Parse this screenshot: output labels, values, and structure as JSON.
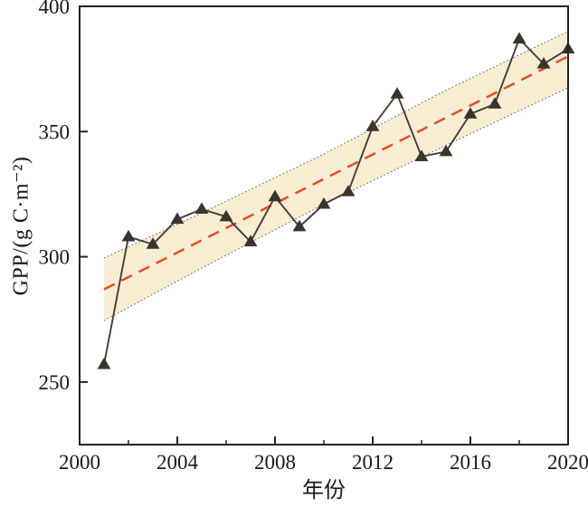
{
  "colors": {
    "background": "#ffffff",
    "axis": "#262220",
    "text": "#1c1a19",
    "band_fill": "#f7edd3",
    "band_edge": "#55504a",
    "trend": "#e5512e",
    "series_line": "#453d37",
    "marker": "#3a332e"
  },
  "chart_data": {
    "type": "line",
    "title": "",
    "xlabel": "年份",
    "ylabel": "GPP/(g C·m⁻²)",
    "xlim": [
      2000,
      2020
    ],
    "ylim": [
      225,
      400
    ],
    "x_major_ticks": [
      2000,
      2004,
      2008,
      2012,
      2016,
      2020
    ],
    "x_minor_ticks": [
      2002,
      2006,
      2010,
      2014,
      2018
    ],
    "y_ticks": [
      250,
      300,
      350,
      400
    ],
    "grid": false,
    "legend": false,
    "x": [
      2001,
      2002,
      2003,
      2004,
      2005,
      2006,
      2007,
      2008,
      2009,
      2010,
      2011,
      2012,
      2013,
      2014,
      2015,
      2016,
      2017,
      2018,
      2019,
      2020
    ],
    "series": [
      {
        "name": "annual-gpp",
        "type": "line-markers",
        "marker": "triangle-up",
        "values": [
          257,
          308,
          305,
          315,
          319,
          316,
          306,
          324,
          312,
          321,
          326,
          352,
          365,
          340,
          342,
          357,
          361,
          387,
          377,
          383
        ]
      },
      {
        "name": "linear-trend",
        "type": "dashed-line",
        "x": [
          2001,
          2020
        ],
        "values": [
          287,
          380
        ]
      },
      {
        "name": "confidence-band",
        "type": "band",
        "x": [
          2001,
          2005,
          2010,
          2015,
          2020
        ],
        "top": [
          299.5,
          317.5,
          341,
          366.5,
          390
        ],
        "bottom": [
          274.5,
          295.5,
          321,
          344.5,
          367.5
        ]
      }
    ]
  }
}
